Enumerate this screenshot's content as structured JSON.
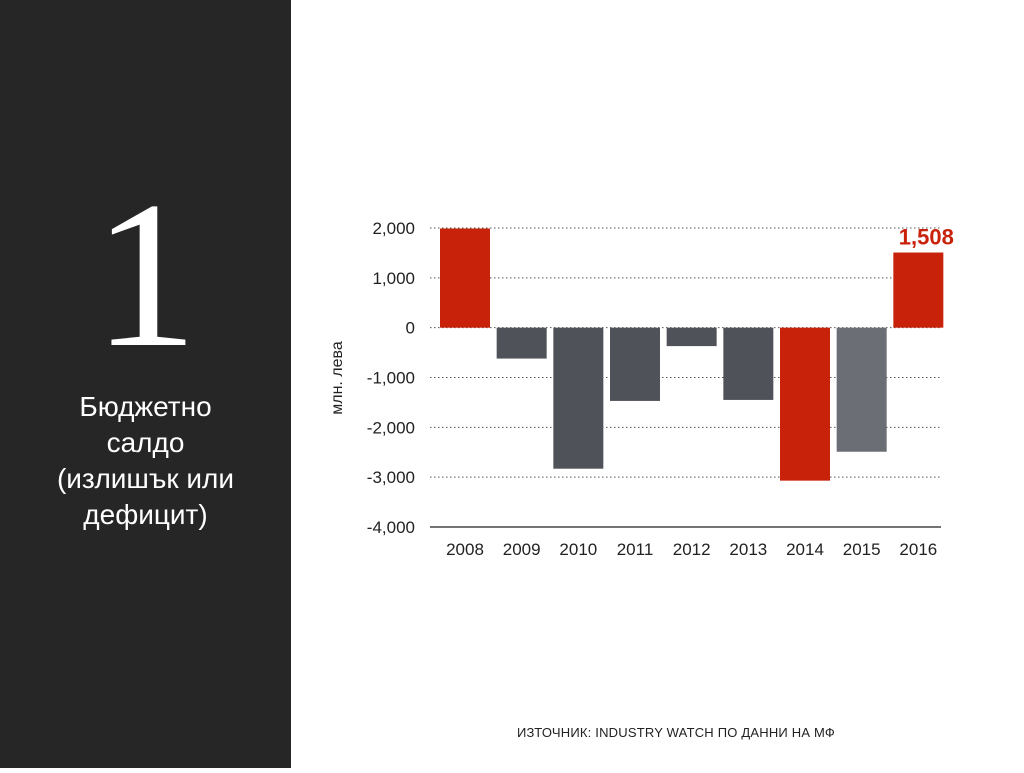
{
  "left_panel": {
    "number": "1",
    "title_lines": [
      "Бюджетно",
      "салдо",
      "(излишък или",
      "дефицит)"
    ]
  },
  "source": "ИЗТОЧНИК: INDUSTRY WATCH ПО ДАННИ НА МФ",
  "colors": {
    "panel_bg": "#262626",
    "highlight": "#c9220b",
    "deficit": "#4f5259",
    "deficit_light": "#6b6e74"
  },
  "chart_data": {
    "type": "bar",
    "categories": [
      "2008",
      "2009",
      "2010",
      "2011",
      "2012",
      "2013",
      "2014",
      "2015",
      "2016"
    ],
    "values": [
      1990,
      -620,
      -2830,
      -1470,
      -370,
      -1450,
      -3070,
      -2490,
      1508
    ],
    "bar_colors": [
      "#c9220b",
      "#4f5259",
      "#4f5259",
      "#4f5259",
      "#4f5259",
      "#4f5259",
      "#c9220b",
      "#6b6e74",
      "#c9220b"
    ],
    "ylabel": "млн. лева",
    "ylim": [
      -4000,
      2000
    ],
    "yticks": [
      2000,
      1000,
      0,
      -1000,
      -2000,
      -3000,
      -4000
    ],
    "ytick_labels": [
      "2,000",
      "1,000",
      "0",
      "-1,000",
      "-2,000",
      "-3,000",
      "-4,000"
    ],
    "grid": "dotted horizontal",
    "annotation": {
      "category": "2016",
      "text": "1,508"
    }
  }
}
